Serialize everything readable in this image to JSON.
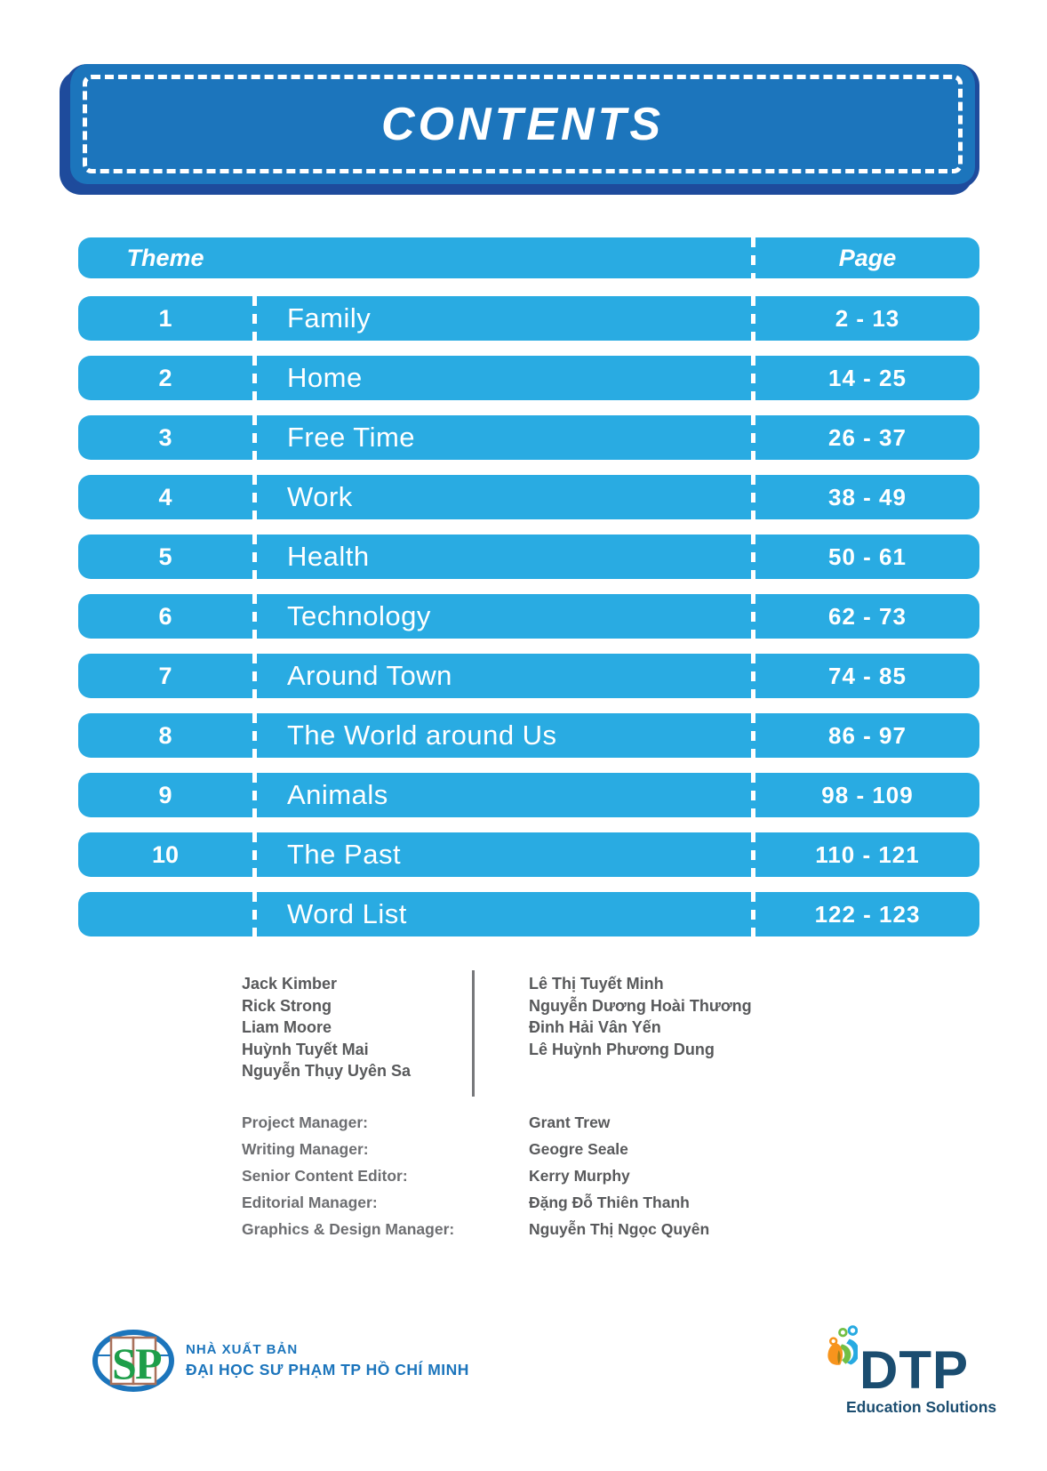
{
  "page": {
    "title": "CONTENTS"
  },
  "table": {
    "header": {
      "theme": "Theme",
      "page": "Page"
    },
    "rows": [
      {
        "num": "1",
        "theme": "Family",
        "pages": "2 - 13"
      },
      {
        "num": "2",
        "theme": "Home",
        "pages": "14 - 25"
      },
      {
        "num": "3",
        "theme": "Free Time",
        "pages": "26 - 37"
      },
      {
        "num": "4",
        "theme": "Work",
        "pages": "38 - 49"
      },
      {
        "num": "5",
        "theme": "Health",
        "pages": "50 - 61"
      },
      {
        "num": "6",
        "theme": "Technology",
        "pages": "62 - 73"
      },
      {
        "num": "7",
        "theme": "Around Town",
        "pages": "74 - 85"
      },
      {
        "num": "8",
        "theme": "The World around Us",
        "pages": "86 - 97"
      },
      {
        "num": "9",
        "theme": "Animals",
        "pages": "98 - 109"
      },
      {
        "num": "10",
        "theme": "The Past",
        "pages": "110 - 121"
      },
      {
        "num": "",
        "theme": "Word List",
        "pages": "122 - 123"
      }
    ]
  },
  "credits": {
    "authors_left": [
      "Jack Kimber",
      "Rick Strong",
      "Liam Moore",
      "Huỳnh Tuyết Mai",
      "Nguyễn Thụy Uyên Sa"
    ],
    "authors_right": [
      "Lê Thị Tuyết Minh",
      "Nguyễn Dương Hoài Thương",
      "Đinh Hải Vân Yến",
      "Lê Huỳnh Phương Dung"
    ],
    "roles": [
      {
        "label": "Project Manager:",
        "name": "Grant Trew"
      },
      {
        "label": "Writing Manager:",
        "name": "Geogre Seale"
      },
      {
        "label": "Senior Content Editor:",
        "name": "Kerry Murphy"
      },
      {
        "label": "Editorial Manager:",
        "name": "Đặng Đỗ Thiên Thanh"
      },
      {
        "label": "Graphics & Design Manager:",
        "name": "Nguyễn Thị Ngọc Quyên"
      }
    ]
  },
  "footer": {
    "publisher_monogram": "SP",
    "publisher_line1": "NHÀ XUẤT BẢN",
    "publisher_line2": "ĐẠI HỌC SƯ PHẠM TP HỒ CHÍ MINH",
    "dtp_name": "DTP",
    "dtp_subtitle": "Education Solutions"
  },
  "colors": {
    "row_blue": "#29ABE2",
    "header_blue": "#1C75BC",
    "header_shadow_blue": "#1E4B9C",
    "credits_gray": "#58595B",
    "dtp_navy": "#1B4D70",
    "logo_green": "#1E9E4A",
    "logo_orange": "#F7941D",
    "logo_leaf_green": "#72BF44",
    "logo_sky_blue": "#27AAE1"
  }
}
